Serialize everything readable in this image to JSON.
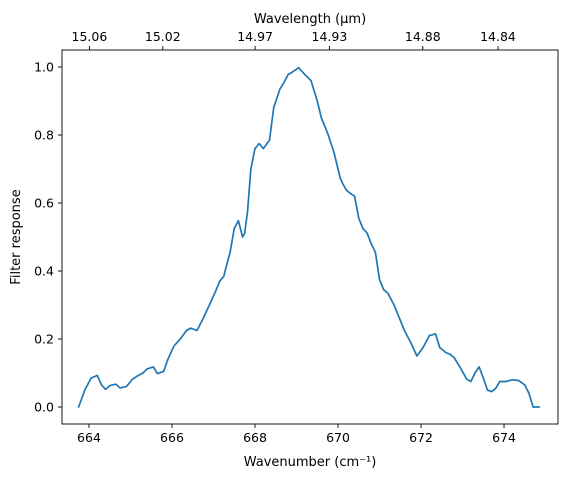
{
  "chart_data": {
    "type": "line",
    "xlabel": "Wavenumber (cm⁻¹)",
    "ylabel": "Filter response",
    "x2label": "Wavelength (μm)",
    "xlim": [
      663.35,
      675.3
    ],
    "ylim": [
      -0.05,
      1.05
    ],
    "xticks": [
      664,
      666,
      668,
      670,
      672,
      674
    ],
    "xtick_labels": [
      "664",
      "666",
      "668",
      "670",
      "672",
      "674"
    ],
    "yticks": [
      0.0,
      0.2,
      0.4,
      0.6,
      0.8,
      1.0
    ],
    "ytick_labels": [
      "0.0",
      "0.2",
      "0.4",
      "0.6",
      "0.8",
      "1.0"
    ],
    "x2ticks_wavelength_um": [
      15.06,
      15.02,
      14.97,
      14.93,
      14.88,
      14.84
    ],
    "x2tick_labels": [
      "15.06",
      "15.02",
      "14.97",
      "14.93",
      "14.88",
      "14.84"
    ],
    "grid": false,
    "line_color": "#1f77b4",
    "series": [
      {
        "x": [
          663.75,
          663.9,
          664.05,
          664.2,
          664.3,
          664.4,
          664.5,
          664.65,
          664.75,
          664.9,
          665.05,
          665.15,
          665.3,
          665.4,
          665.55,
          665.65,
          665.8,
          665.9,
          666.05,
          666.2,
          666.35,
          666.45,
          666.6,
          666.75,
          666.9,
          667.05,
          667.15,
          667.25,
          667.3,
          667.4,
          667.5,
          667.6,
          667.7,
          667.75,
          667.82,
          667.9,
          668.0,
          668.1,
          668.2,
          668.35,
          668.45,
          668.6,
          668.7,
          668.8,
          668.9,
          669.05,
          669.2,
          669.35,
          669.5,
          669.6,
          669.75,
          669.9,
          670.05,
          670.1,
          670.2,
          670.3,
          670.4,
          670.5,
          670.6,
          670.7,
          670.8,
          670.9,
          671.0,
          671.1,
          671.2,
          671.35,
          671.45,
          671.5,
          671.6,
          671.75,
          671.9,
          672.05,
          672.2,
          672.35,
          672.45,
          672.6,
          672.7,
          672.8,
          672.95,
          673.1,
          673.2,
          673.3,
          673.4,
          673.5,
          673.6,
          673.7,
          673.8,
          673.9,
          674.05,
          674.2,
          674.35,
          674.5,
          674.6,
          674.7,
          674.85
        ],
        "y": [
          0.0,
          0.05,
          0.085,
          0.093,
          0.065,
          0.052,
          0.063,
          0.067,
          0.056,
          0.06,
          0.082,
          0.09,
          0.1,
          0.112,
          0.118,
          0.098,
          0.105,
          0.14,
          0.18,
          0.2,
          0.225,
          0.232,
          0.225,
          0.26,
          0.3,
          0.34,
          0.37,
          0.385,
          0.41,
          0.455,
          0.525,
          0.548,
          0.5,
          0.51,
          0.575,
          0.7,
          0.76,
          0.775,
          0.76,
          0.785,
          0.88,
          0.935,
          0.955,
          0.978,
          0.985,
          0.998,
          0.978,
          0.96,
          0.9,
          0.85,
          0.805,
          0.75,
          0.675,
          0.66,
          0.638,
          0.628,
          0.62,
          0.555,
          0.525,
          0.512,
          0.48,
          0.455,
          0.375,
          0.345,
          0.335,
          0.3,
          0.27,
          0.255,
          0.225,
          0.19,
          0.15,
          0.175,
          0.21,
          0.215,
          0.175,
          0.16,
          0.155,
          0.145,
          0.115,
          0.082,
          0.075,
          0.1,
          0.118,
          0.085,
          0.05,
          0.045,
          0.055,
          0.075,
          0.075,
          0.08,
          0.078,
          0.065,
          0.04,
          0.0,
          0.0
        ]
      }
    ]
  }
}
